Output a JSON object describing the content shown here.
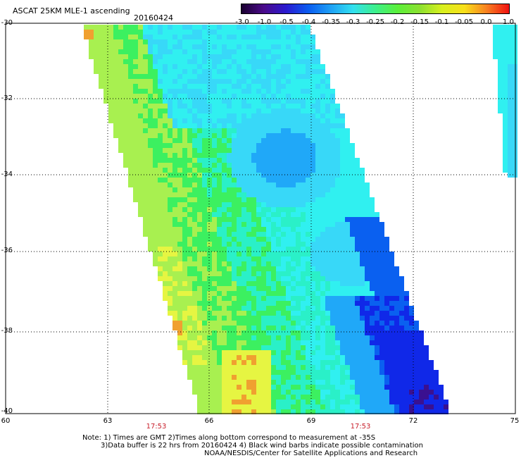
{
  "header": {
    "title": "ASCAT 25KM MLE-1 ascending",
    "date": "20160424"
  },
  "colorbar": {
    "tick_labels": [
      "-3.0",
      "-1.0",
      "-0.5",
      "-0.4",
      "-0.35",
      "-0.3",
      "-0.25",
      "-0.2",
      "-0.15",
      "-0.1",
      "-0.05",
      "0.0",
      "1.0"
    ],
    "colors": [
      "#1a0030",
      "#4a0a8a",
      "#2a1ad0",
      "#0a5cf0",
      "#1ea0f5",
      "#32e0f0",
      "#3cf08c",
      "#5af03a",
      "#8ce030",
      "#d8f01e",
      "#f8e01a",
      "#f88020",
      "#f01010"
    ]
  },
  "map": {
    "y_axis_labels": [
      "-30",
      "-32",
      "-34",
      "-36",
      "-38",
      "-40"
    ],
    "x_axis_labels": [
      "60",
      "63",
      "66",
      "69",
      "72",
      "75"
    ],
    "time_labels": [
      "17:53",
      "17:53"
    ],
    "grid_style": "dotted",
    "swath_colors": {
      "yellow": "#e6f542",
      "orange": "#f0a030",
      "lime": "#a8f050",
      "green": "#3cf060",
      "aqua": "#2af0c8",
      "cyan": "#30f0f0",
      "light_blue": "#38d8f8",
      "mid_blue": "#20a8f8",
      "blue": "#0a60f0",
      "deep_blue": "#1028e8",
      "purple": "#3a1090"
    }
  },
  "footer": {
    "note_line1": "Note: 1) Times are GMT 2)Times along bottom correspond to measurement at -35S",
    "note_line2": "3)Data buffer is 22 hrs from 20160424 4) Black wind barbs indicate possible contamination",
    "note_line3": "NOAA/NESDIS/Center for Satellite Applications and Research"
  }
}
